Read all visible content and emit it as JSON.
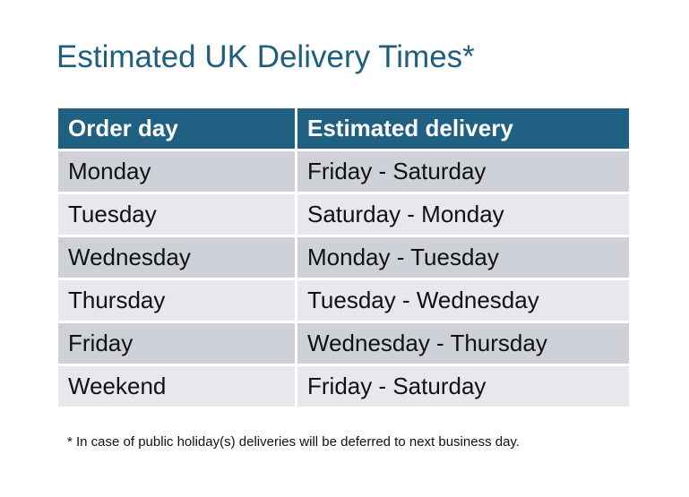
{
  "title": "Estimated UK Delivery Times*",
  "table": {
    "headers": [
      "Order day",
      "Estimated delivery"
    ],
    "rows": [
      [
        "Monday",
        "Friday - Saturday"
      ],
      [
        "Tuesday",
        "Saturday - Monday"
      ],
      [
        "Wednesday",
        "Monday - Tuesday"
      ],
      [
        "Thursday",
        "Tuesday - Wednesday"
      ],
      [
        "Friday",
        "Wednesday - Thursday"
      ],
      [
        "Weekend",
        "Friday - Saturday"
      ]
    ]
  },
  "footnote": "* In case of public holiday(s) deliveries will be deferred to next business day.",
  "colors": {
    "header": "#1f6083",
    "title": "#1f5f7e",
    "row_dark": "#ced2d8",
    "row_light": "#e6e8eb"
  }
}
